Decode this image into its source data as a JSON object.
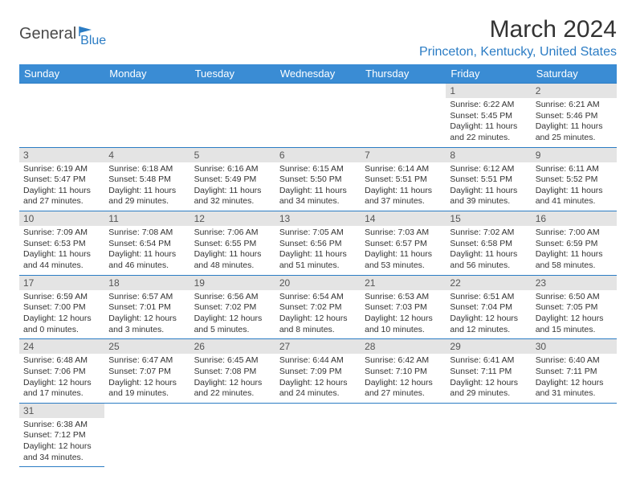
{
  "logo": {
    "text1": "General",
    "text2": "Blue"
  },
  "title": "March 2024",
  "location": "Princeton, Kentucky, United States",
  "colors": {
    "header_bg": "#3a8cd4",
    "accent": "#2b7cc4",
    "daynum_bg": "#e4e4e4"
  },
  "weekdays": [
    "Sunday",
    "Monday",
    "Tuesday",
    "Wednesday",
    "Thursday",
    "Friday",
    "Saturday"
  ],
  "weeks": [
    [
      {
        "n": "",
        "sr": "",
        "ss": "",
        "dl": ""
      },
      {
        "n": "",
        "sr": "",
        "ss": "",
        "dl": ""
      },
      {
        "n": "",
        "sr": "",
        "ss": "",
        "dl": ""
      },
      {
        "n": "",
        "sr": "",
        "ss": "",
        "dl": ""
      },
      {
        "n": "",
        "sr": "",
        "ss": "",
        "dl": ""
      },
      {
        "n": "1",
        "sr": "Sunrise: 6:22 AM",
        "ss": "Sunset: 5:45 PM",
        "dl": "Daylight: 11 hours and 22 minutes."
      },
      {
        "n": "2",
        "sr": "Sunrise: 6:21 AM",
        "ss": "Sunset: 5:46 PM",
        "dl": "Daylight: 11 hours and 25 minutes."
      }
    ],
    [
      {
        "n": "3",
        "sr": "Sunrise: 6:19 AM",
        "ss": "Sunset: 5:47 PM",
        "dl": "Daylight: 11 hours and 27 minutes."
      },
      {
        "n": "4",
        "sr": "Sunrise: 6:18 AM",
        "ss": "Sunset: 5:48 PM",
        "dl": "Daylight: 11 hours and 29 minutes."
      },
      {
        "n": "5",
        "sr": "Sunrise: 6:16 AM",
        "ss": "Sunset: 5:49 PM",
        "dl": "Daylight: 11 hours and 32 minutes."
      },
      {
        "n": "6",
        "sr": "Sunrise: 6:15 AM",
        "ss": "Sunset: 5:50 PM",
        "dl": "Daylight: 11 hours and 34 minutes."
      },
      {
        "n": "7",
        "sr": "Sunrise: 6:14 AM",
        "ss": "Sunset: 5:51 PM",
        "dl": "Daylight: 11 hours and 37 minutes."
      },
      {
        "n": "8",
        "sr": "Sunrise: 6:12 AM",
        "ss": "Sunset: 5:51 PM",
        "dl": "Daylight: 11 hours and 39 minutes."
      },
      {
        "n": "9",
        "sr": "Sunrise: 6:11 AM",
        "ss": "Sunset: 5:52 PM",
        "dl": "Daylight: 11 hours and 41 minutes."
      }
    ],
    [
      {
        "n": "10",
        "sr": "Sunrise: 7:09 AM",
        "ss": "Sunset: 6:53 PM",
        "dl": "Daylight: 11 hours and 44 minutes."
      },
      {
        "n": "11",
        "sr": "Sunrise: 7:08 AM",
        "ss": "Sunset: 6:54 PM",
        "dl": "Daylight: 11 hours and 46 minutes."
      },
      {
        "n": "12",
        "sr": "Sunrise: 7:06 AM",
        "ss": "Sunset: 6:55 PM",
        "dl": "Daylight: 11 hours and 48 minutes."
      },
      {
        "n": "13",
        "sr": "Sunrise: 7:05 AM",
        "ss": "Sunset: 6:56 PM",
        "dl": "Daylight: 11 hours and 51 minutes."
      },
      {
        "n": "14",
        "sr": "Sunrise: 7:03 AM",
        "ss": "Sunset: 6:57 PM",
        "dl": "Daylight: 11 hours and 53 minutes."
      },
      {
        "n": "15",
        "sr": "Sunrise: 7:02 AM",
        "ss": "Sunset: 6:58 PM",
        "dl": "Daylight: 11 hours and 56 minutes."
      },
      {
        "n": "16",
        "sr": "Sunrise: 7:00 AM",
        "ss": "Sunset: 6:59 PM",
        "dl": "Daylight: 11 hours and 58 minutes."
      }
    ],
    [
      {
        "n": "17",
        "sr": "Sunrise: 6:59 AM",
        "ss": "Sunset: 7:00 PM",
        "dl": "Daylight: 12 hours and 0 minutes."
      },
      {
        "n": "18",
        "sr": "Sunrise: 6:57 AM",
        "ss": "Sunset: 7:01 PM",
        "dl": "Daylight: 12 hours and 3 minutes."
      },
      {
        "n": "19",
        "sr": "Sunrise: 6:56 AM",
        "ss": "Sunset: 7:02 PM",
        "dl": "Daylight: 12 hours and 5 minutes."
      },
      {
        "n": "20",
        "sr": "Sunrise: 6:54 AM",
        "ss": "Sunset: 7:02 PM",
        "dl": "Daylight: 12 hours and 8 minutes."
      },
      {
        "n": "21",
        "sr": "Sunrise: 6:53 AM",
        "ss": "Sunset: 7:03 PM",
        "dl": "Daylight: 12 hours and 10 minutes."
      },
      {
        "n": "22",
        "sr": "Sunrise: 6:51 AM",
        "ss": "Sunset: 7:04 PM",
        "dl": "Daylight: 12 hours and 12 minutes."
      },
      {
        "n": "23",
        "sr": "Sunrise: 6:50 AM",
        "ss": "Sunset: 7:05 PM",
        "dl": "Daylight: 12 hours and 15 minutes."
      }
    ],
    [
      {
        "n": "24",
        "sr": "Sunrise: 6:48 AM",
        "ss": "Sunset: 7:06 PM",
        "dl": "Daylight: 12 hours and 17 minutes."
      },
      {
        "n": "25",
        "sr": "Sunrise: 6:47 AM",
        "ss": "Sunset: 7:07 PM",
        "dl": "Daylight: 12 hours and 19 minutes."
      },
      {
        "n": "26",
        "sr": "Sunrise: 6:45 AM",
        "ss": "Sunset: 7:08 PM",
        "dl": "Daylight: 12 hours and 22 minutes."
      },
      {
        "n": "27",
        "sr": "Sunrise: 6:44 AM",
        "ss": "Sunset: 7:09 PM",
        "dl": "Daylight: 12 hours and 24 minutes."
      },
      {
        "n": "28",
        "sr": "Sunrise: 6:42 AM",
        "ss": "Sunset: 7:10 PM",
        "dl": "Daylight: 12 hours and 27 minutes."
      },
      {
        "n": "29",
        "sr": "Sunrise: 6:41 AM",
        "ss": "Sunset: 7:11 PM",
        "dl": "Daylight: 12 hours and 29 minutes."
      },
      {
        "n": "30",
        "sr": "Sunrise: 6:40 AM",
        "ss": "Sunset: 7:11 PM",
        "dl": "Daylight: 12 hours and 31 minutes."
      }
    ],
    [
      {
        "n": "31",
        "sr": "Sunrise: 6:38 AM",
        "ss": "Sunset: 7:12 PM",
        "dl": "Daylight: 12 hours and 34 minutes."
      },
      {
        "n": "",
        "sr": "",
        "ss": "",
        "dl": ""
      },
      {
        "n": "",
        "sr": "",
        "ss": "",
        "dl": ""
      },
      {
        "n": "",
        "sr": "",
        "ss": "",
        "dl": ""
      },
      {
        "n": "",
        "sr": "",
        "ss": "",
        "dl": ""
      },
      {
        "n": "",
        "sr": "",
        "ss": "",
        "dl": ""
      },
      {
        "n": "",
        "sr": "",
        "ss": "",
        "dl": ""
      }
    ]
  ]
}
